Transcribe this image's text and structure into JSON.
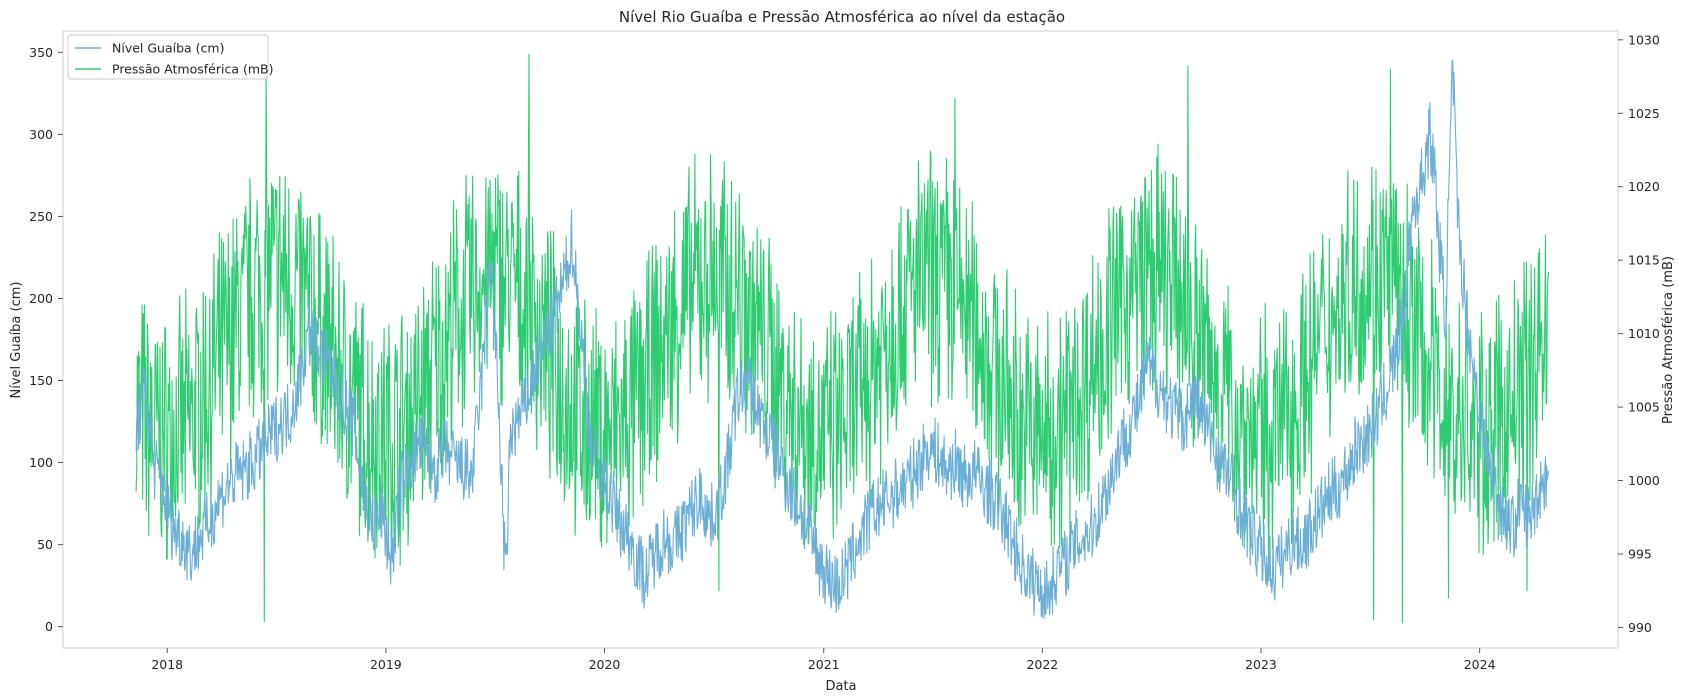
{
  "chart_data": {
    "type": "line",
    "title": "Nível Rio Guaíba e Pressão Atmosférica ao nível da estação",
    "xlabel": "Data",
    "ylabel_left": "Nível Guaíba (cm)",
    "ylabel_right": "Pressão Atmosférica (mB)",
    "grid": false,
    "legend_position": "upper-left",
    "x_range": [
      "2017-07-11",
      "2024-08-19"
    ],
    "x_ticks": [
      "2018",
      "2019",
      "2020",
      "2021",
      "2022",
      "2023",
      "2024"
    ],
    "y_left_range": [
      -13,
      363
    ],
    "y_left_ticks": [
      0,
      50,
      100,
      150,
      200,
      250,
      300,
      350
    ],
    "y_right_range": [
      988.6,
      1030.6
    ],
    "y_right_ticks": [
      990,
      995,
      1000,
      1005,
      1010,
      1015,
      1020,
      1025,
      1030
    ],
    "series": [
      {
        "name": "Nível Guaíba (cm)",
        "axis": "left",
        "color": "#6baed6",
        "points": [
          [
            "2017-11-10",
            120
          ],
          [
            "2017-11-25",
            145
          ],
          [
            "2017-12-10",
            98
          ],
          [
            "2017-12-25",
            85
          ],
          [
            "2018-01-10",
            60
          ],
          [
            "2018-01-25",
            55
          ],
          [
            "2018-02-10",
            45
          ],
          [
            "2018-02-25",
            55
          ],
          [
            "2018-03-10",
            62
          ],
          [
            "2018-03-25",
            75
          ],
          [
            "2018-04-10",
            85
          ],
          [
            "2018-04-25",
            92
          ],
          [
            "2018-05-10",
            95
          ],
          [
            "2018-05-25",
            100
          ],
          [
            "2018-06-10",
            110
          ],
          [
            "2018-06-25",
            118
          ],
          [
            "2018-07-10",
            125
          ],
          [
            "2018-07-25",
            130
          ],
          [
            "2018-08-10",
            150
          ],
          [
            "2018-08-25",
            180
          ],
          [
            "2018-09-10",
            170
          ],
          [
            "2018-09-25",
            160
          ],
          [
            "2018-10-10",
            150
          ],
          [
            "2018-10-25",
            135
          ],
          [
            "2018-11-10",
            120
          ],
          [
            "2018-11-25",
            80
          ],
          [
            "2018-12-10",
            60
          ],
          [
            "2018-12-25",
            70
          ],
          [
            "2019-01-10",
            40
          ],
          [
            "2019-01-25",
            85
          ],
          [
            "2019-02-10",
            100
          ],
          [
            "2019-02-25",
            110
          ],
          [
            "2019-03-10",
            105
          ],
          [
            "2019-03-25",
            95
          ],
          [
            "2019-04-10",
            108
          ],
          [
            "2019-04-25",
            100
          ],
          [
            "2019-05-10",
            96
          ],
          [
            "2019-05-25",
            92
          ],
          [
            "2019-06-10",
            150
          ],
          [
            "2019-06-25",
            230
          ],
          [
            "2019-07-10",
            120
          ],
          [
            "2019-07-20",
            25
          ],
          [
            "2019-07-28",
            118
          ],
          [
            "2019-08-10",
            125
          ],
          [
            "2019-08-25",
            140
          ],
          [
            "2019-09-10",
            160
          ],
          [
            "2019-09-25",
            175
          ],
          [
            "2019-10-10",
            190
          ],
          [
            "2019-10-25",
            210
          ],
          [
            "2019-11-08",
            237
          ],
          [
            "2019-11-25",
            170
          ],
          [
            "2019-12-10",
            110
          ],
          [
            "2019-12-25",
            95
          ],
          [
            "2020-01-10",
            80
          ],
          [
            "2020-01-25",
            65
          ],
          [
            "2020-02-10",
            55
          ],
          [
            "2020-02-25",
            40
          ],
          [
            "2020-03-10",
            30
          ],
          [
            "2020-03-25",
            45
          ],
          [
            "2020-04-10",
            55
          ],
          [
            "2020-04-25",
            50
          ],
          [
            "2020-05-10",
            60
          ],
          [
            "2020-05-25",
            70
          ],
          [
            "2020-06-10",
            80
          ],
          [
            "2020-06-25",
            65
          ],
          [
            "2020-07-10",
            75
          ],
          [
            "2020-07-25",
            100
          ],
          [
            "2020-08-10",
            140
          ],
          [
            "2020-08-25",
            150
          ],
          [
            "2020-09-10",
            135
          ],
          [
            "2020-09-25",
            120
          ],
          [
            "2020-10-10",
            110
          ],
          [
            "2020-10-25",
            95
          ],
          [
            "2020-11-10",
            80
          ],
          [
            "2020-11-25",
            70
          ],
          [
            "2020-12-10",
            55
          ],
          [
            "2020-12-25",
            40
          ],
          [
            "2021-01-10",
            30
          ],
          [
            "2021-01-25",
            25
          ],
          [
            "2021-02-10",
            35
          ],
          [
            "2021-02-25",
            50
          ],
          [
            "2021-03-10",
            60
          ],
          [
            "2021-03-25",
            70
          ],
          [
            "2021-04-10",
            75
          ],
          [
            "2021-04-25",
            80
          ],
          [
            "2021-05-10",
            85
          ],
          [
            "2021-05-25",
            90
          ],
          [
            "2021-06-10",
            100
          ],
          [
            "2021-06-25",
            110
          ],
          [
            "2021-07-10",
            105
          ],
          [
            "2021-07-25",
            95
          ],
          [
            "2021-08-10",
            100
          ],
          [
            "2021-08-25",
            90
          ],
          [
            "2021-09-10",
            95
          ],
          [
            "2021-09-25",
            85
          ],
          [
            "2021-10-10",
            80
          ],
          [
            "2021-10-25",
            70
          ],
          [
            "2021-11-10",
            55
          ],
          [
            "2021-11-25",
            40
          ],
          [
            "2021-12-10",
            30
          ],
          [
            "2021-12-25",
            25
          ],
          [
            "2022-01-10",
            20
          ],
          [
            "2022-01-25",
            35
          ],
          [
            "2022-02-10",
            40
          ],
          [
            "2022-02-25",
            50
          ],
          [
            "2022-03-10",
            55
          ],
          [
            "2022-03-25",
            60
          ],
          [
            "2022-04-10",
            75
          ],
          [
            "2022-04-25",
            90
          ],
          [
            "2022-05-10",
            110
          ],
          [
            "2022-05-25",
            120
          ],
          [
            "2022-06-10",
            135
          ],
          [
            "2022-06-25",
            160
          ],
          [
            "2022-07-10",
            150
          ],
          [
            "2022-07-25",
            140
          ],
          [
            "2022-08-10",
            130
          ],
          [
            "2022-08-25",
            125
          ],
          [
            "2022-09-10",
            140
          ],
          [
            "2022-09-25",
            130
          ],
          [
            "2022-10-10",
            115
          ],
          [
            "2022-10-25",
            100
          ],
          [
            "2022-11-10",
            90
          ],
          [
            "2022-11-25",
            75
          ],
          [
            "2022-12-10",
            60
          ],
          [
            "2022-12-25",
            50
          ],
          [
            "2023-01-10",
            40
          ],
          [
            "2023-01-25",
            35
          ],
          [
            "2023-02-10",
            45
          ],
          [
            "2023-02-25",
            55
          ],
          [
            "2023-03-10",
            50
          ],
          [
            "2023-03-25",
            60
          ],
          [
            "2023-04-10",
            70
          ],
          [
            "2023-04-25",
            80
          ],
          [
            "2023-05-10",
            85
          ],
          [
            "2023-05-25",
            95
          ],
          [
            "2023-06-10",
            110
          ],
          [
            "2023-06-25",
            115
          ],
          [
            "2023-07-10",
            125
          ],
          [
            "2023-07-25",
            140
          ],
          [
            "2023-08-10",
            160
          ],
          [
            "2023-08-25",
            185
          ],
          [
            "2023-09-10",
            250
          ],
          [
            "2023-09-25",
            270
          ],
          [
            "2023-10-10",
            300
          ],
          [
            "2023-10-18",
            275
          ],
          [
            "2023-10-25",
            235
          ],
          [
            "2023-11-05",
            190
          ],
          [
            "2023-11-17",
            345
          ],
          [
            "2023-11-25",
            250
          ],
          [
            "2023-12-10",
            190
          ],
          [
            "2023-12-25",
            150
          ],
          [
            "2024-01-10",
            110
          ],
          [
            "2024-01-25",
            85
          ],
          [
            "2024-02-10",
            70
          ],
          [
            "2024-02-25",
            60
          ],
          [
            "2024-03-10",
            75
          ],
          [
            "2024-03-25",
            65
          ],
          [
            "2024-04-10",
            85
          ],
          [
            "2024-04-25",
            95
          ]
        ]
      },
      {
        "name": "Pressão Atmosférica (mB)",
        "axis": "right",
        "color": "#2ecc71",
        "range_envelope": {
          "x_start": "2017-11-10",
          "x_end": "2024-04-25",
          "seasonal_peak_month": 7,
          "extremes": [
            [
              "2018-06-12",
              990.4
            ],
            [
              "2018-06-15",
              1027.8
            ],
            [
              "2019-08-28",
              1029.0
            ],
            [
              "2020-07-10",
              992.5
            ],
            [
              "2021-08-08",
              1026.0
            ],
            [
              "2022-09-01",
              1028.2
            ],
            [
              "2023-07-08",
              990.5
            ],
            [
              "2023-08-05",
              1028.0
            ],
            [
              "2023-08-25",
              990.3
            ],
            [
              "2023-11-10",
              992.0
            ],
            [
              "2024-03-20",
              992.5
            ]
          ]
        }
      }
    ]
  }
}
